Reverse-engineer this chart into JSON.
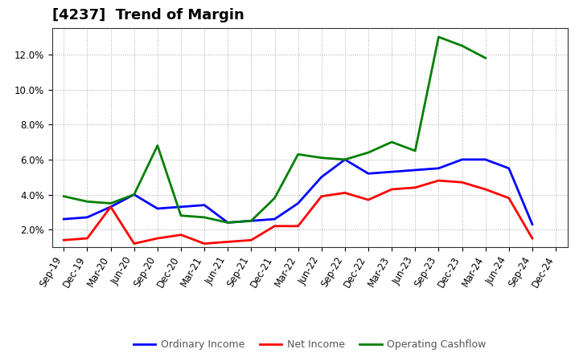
{
  "title": "[4237]  Trend of Margin",
  "x_labels": [
    "Sep-19",
    "Dec-19",
    "Mar-20",
    "Jun-20",
    "Sep-20",
    "Dec-20",
    "Mar-21",
    "Jun-21",
    "Sep-21",
    "Dec-21",
    "Mar-22",
    "Jun-22",
    "Sep-22",
    "Dec-22",
    "Mar-23",
    "Jun-23",
    "Sep-23",
    "Dec-23",
    "Mar-24",
    "Jun-24",
    "Sep-24",
    "Dec-24"
  ],
  "ordinary_income": [
    2.6,
    2.7,
    3.3,
    4.0,
    3.2,
    3.3,
    3.4,
    2.4,
    2.5,
    2.6,
    3.5,
    5.0,
    6.0,
    5.2,
    5.3,
    5.4,
    5.5,
    6.0,
    6.0,
    5.5,
    2.3,
    null
  ],
  "net_income": [
    1.4,
    1.5,
    3.3,
    1.2,
    1.5,
    1.7,
    1.2,
    1.3,
    1.4,
    2.2,
    2.2,
    3.9,
    4.1,
    3.7,
    4.3,
    4.4,
    4.8,
    4.7,
    4.3,
    3.8,
    1.5,
    null
  ],
  "operating_cashflow": [
    3.9,
    3.6,
    3.5,
    4.0,
    6.8,
    2.8,
    2.7,
    2.4,
    2.5,
    3.8,
    6.3,
    6.1,
    6.0,
    6.4,
    7.0,
    6.5,
    13.0,
    12.5,
    11.8,
    null,
    null,
    null
  ],
  "ordinary_income_color": "#0000ff",
  "net_income_color": "#ff0000",
  "operating_cashflow_color": "#008000",
  "ylim": [
    1.0,
    13.5
  ],
  "yticks": [
    2.0,
    4.0,
    6.0,
    8.0,
    10.0,
    12.0
  ],
  "background_color": "#ffffff",
  "plot_bg_color": "#ffffff",
  "grid_color": "#aaaaaa",
  "grid_style": ":",
  "legend_labels": [
    "Ordinary Income",
    "Net Income",
    "Operating Cashflow"
  ],
  "legend_text_color": "#555555",
  "title_fontsize": 13,
  "tick_fontsize": 8.5,
  "linewidth": 2.0
}
